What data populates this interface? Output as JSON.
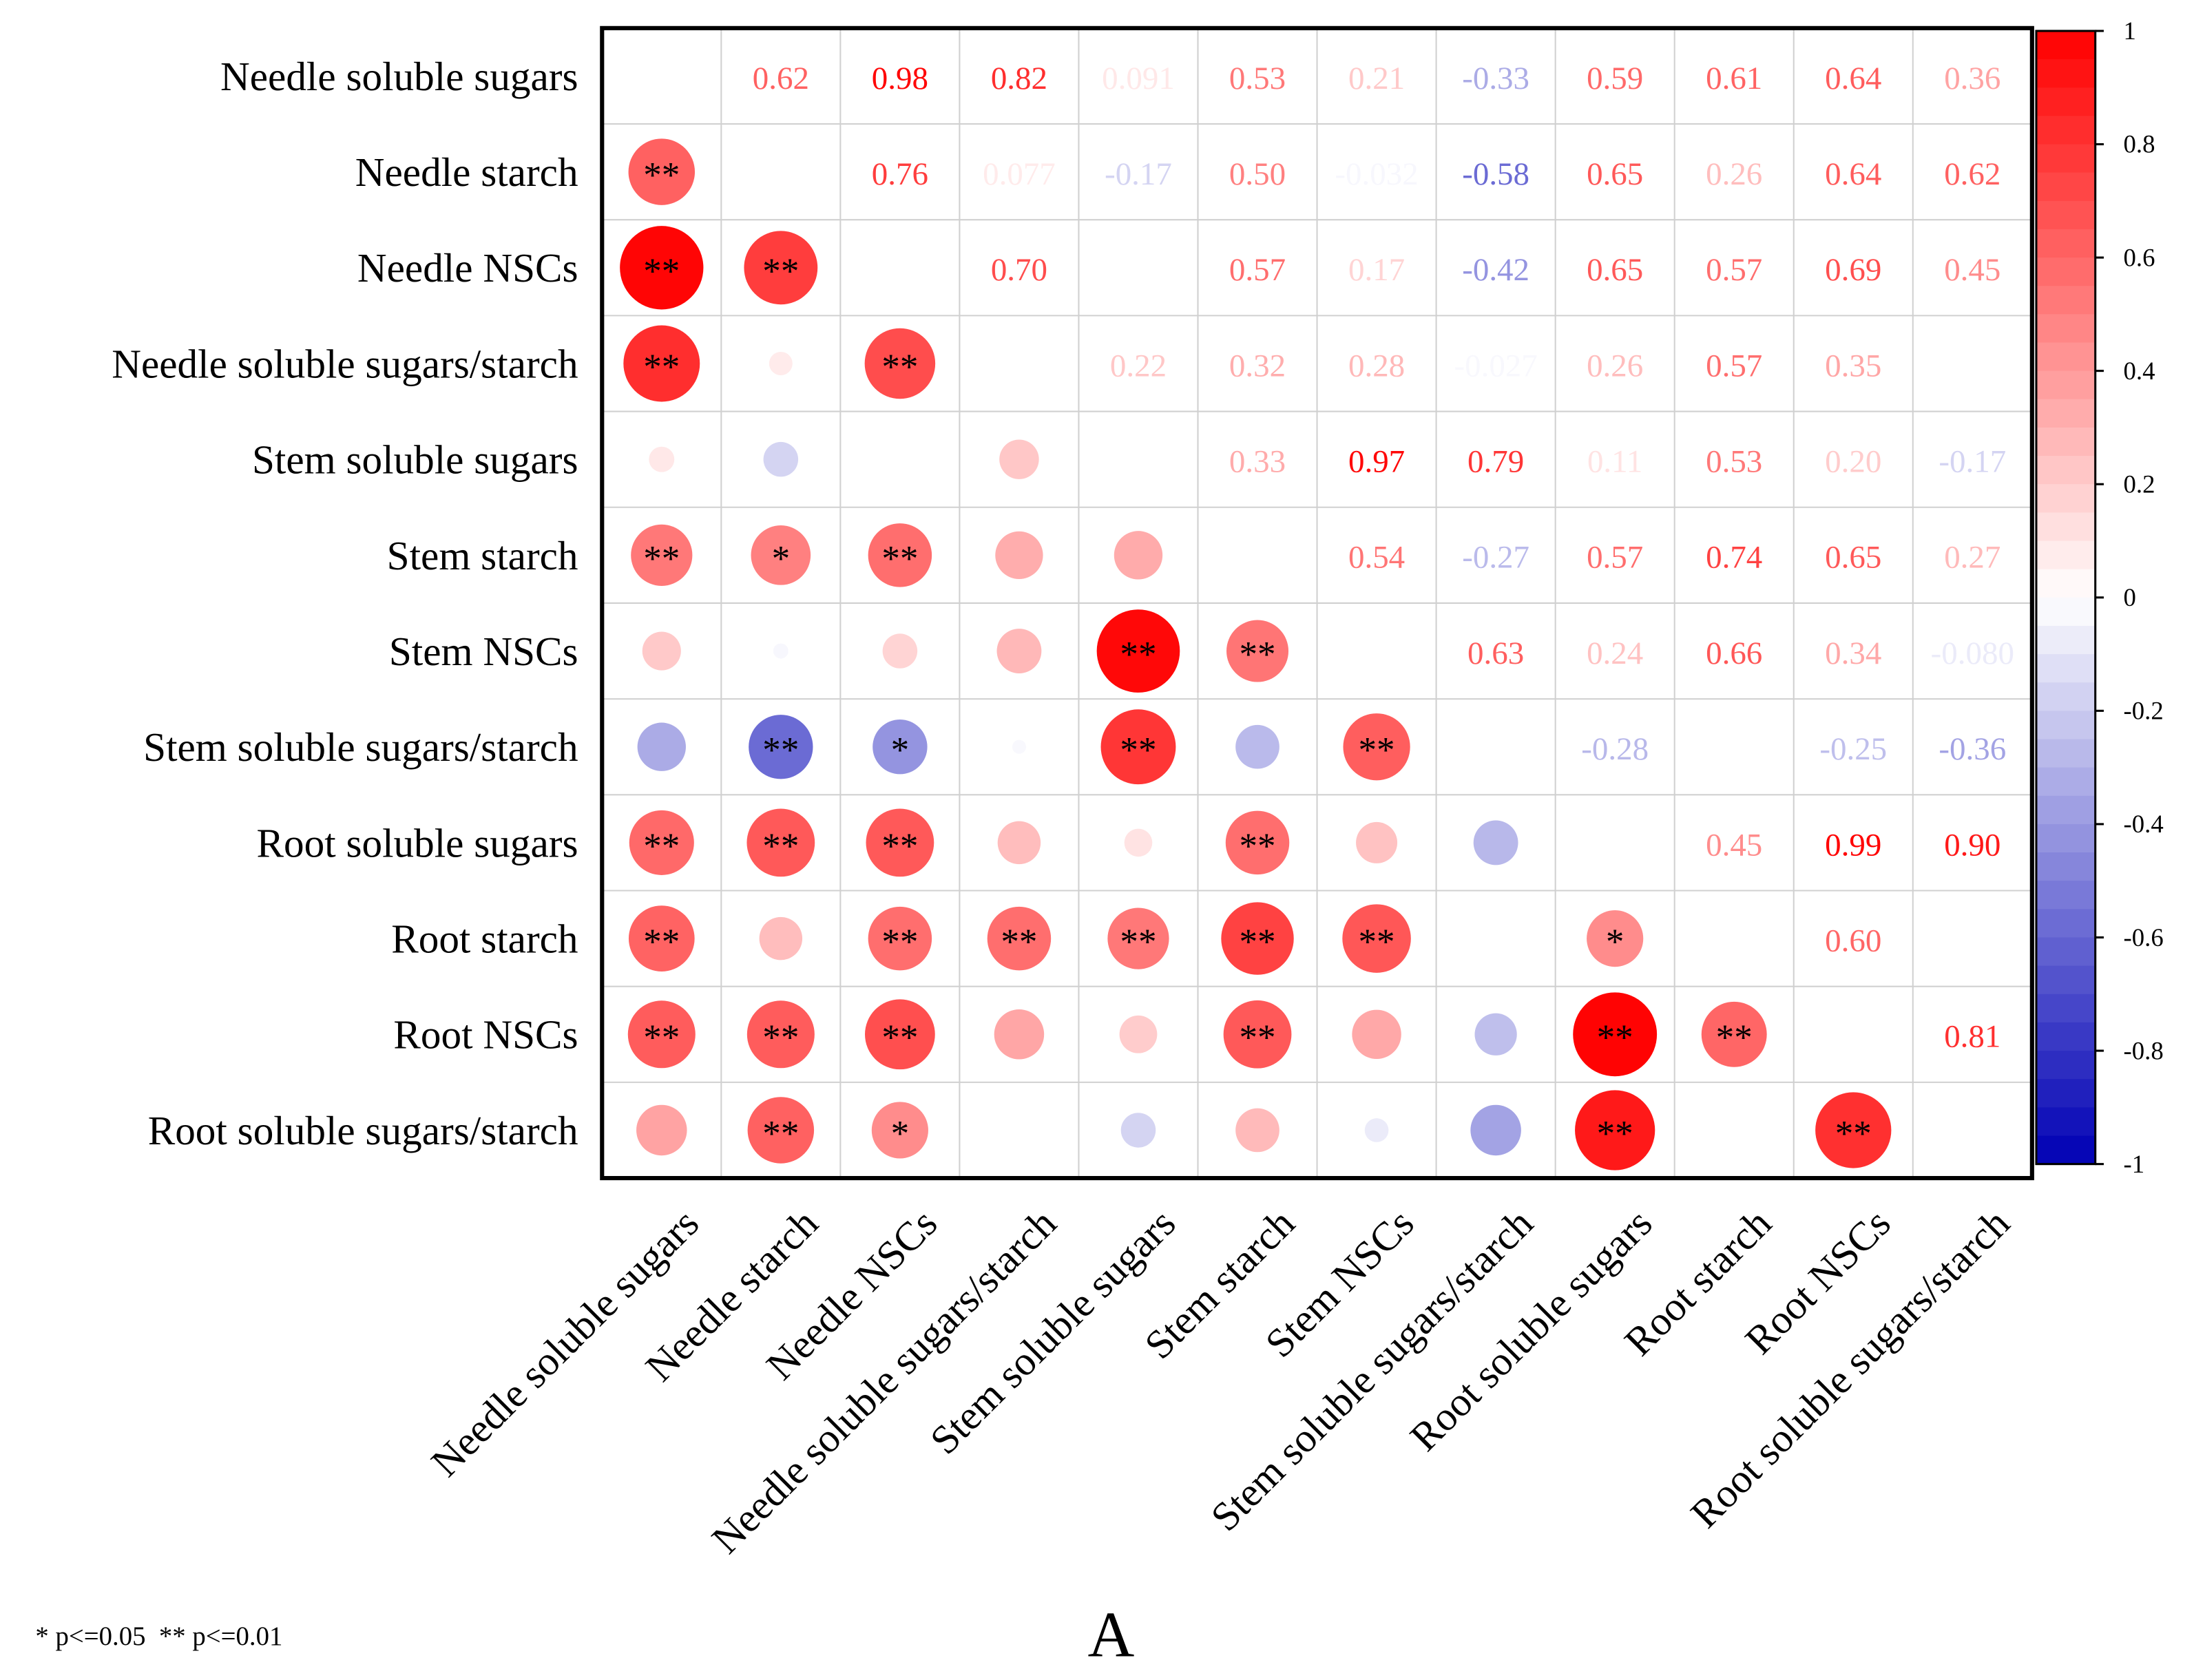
{
  "chart_data": {
    "type": "heatmap",
    "subtype": "correlation-matrix",
    "panel_label": "A",
    "footnote": "* p<=0.05  ** p<=0.01",
    "variables": [
      "Needle soluble sugars",
      "Needle starch",
      "Needle NSCs",
      "Needle soluble sugars/starch",
      "Stem soluble sugars",
      "Stem starch",
      "Stem NSCs",
      "Stem soluble sugars/starch",
      "Root soluble sugars",
      "Root starch",
      "Root NSCs",
      "Root soluble sugars/starch"
    ],
    "upper_triangle_labels": [
      [
        null,
        "0.62",
        "0.98",
        "0.82",
        "0.091",
        "0.53",
        "0.21",
        "-0.33",
        "0.59",
        "0.61",
        "0.64",
        "0.36"
      ],
      [
        null,
        null,
        "0.76",
        "0.077",
        "-0.17",
        "0.50",
        "-0.032",
        "-0.58",
        "0.65",
        "0.26",
        "0.64",
        "0.62"
      ],
      [
        null,
        null,
        null,
        "0.70",
        null,
        "0.57",
        "0.17",
        "-0.42",
        "0.65",
        "0.57",
        "0.69",
        "0.45"
      ],
      [
        null,
        null,
        null,
        null,
        "0.22",
        "0.32",
        "0.28",
        "-0.027",
        "0.26",
        "0.57",
        "0.35",
        null
      ],
      [
        null,
        null,
        null,
        null,
        null,
        "0.33",
        "0.97",
        "0.79",
        "0.11",
        "0.53",
        "0.20",
        "-0.17"
      ],
      [
        null,
        null,
        null,
        null,
        null,
        null,
        "0.54",
        "-0.27",
        "0.57",
        "0.74",
        "0.65",
        "0.27"
      ],
      [
        null,
        null,
        null,
        null,
        null,
        null,
        null,
        "0.63",
        "0.24",
        "0.66",
        "0.34",
        "-0.080"
      ],
      [
        null,
        null,
        null,
        null,
        null,
        null,
        null,
        null,
        "-0.28",
        null,
        "-0.25",
        "-0.36"
      ],
      [
        null,
        null,
        null,
        null,
        null,
        null,
        null,
        null,
        null,
        "0.45",
        "0.99",
        "0.90"
      ],
      [
        null,
        null,
        null,
        null,
        null,
        null,
        null,
        null,
        null,
        null,
        "0.60",
        null
      ],
      [
        null,
        null,
        null,
        null,
        null,
        null,
        null,
        null,
        null,
        null,
        null,
        "0.81"
      ],
      [
        null,
        null,
        null,
        null,
        null,
        null,
        null,
        null,
        null,
        null,
        null,
        null
      ]
    ],
    "lower_triangle_significance": [
      [],
      [
        "**"
      ],
      [
        "**",
        "**"
      ],
      [
        "**",
        "",
        "**"
      ],
      [
        "",
        "",
        "",
        ""
      ],
      [
        "**",
        "*",
        "**",
        "",
        ""
      ],
      [
        "",
        "",
        "",
        "",
        "**",
        "**"
      ],
      [
        "",
        "**",
        "*",
        "",
        "**",
        "",
        "**"
      ],
      [
        "**",
        "**",
        "**",
        "",
        "",
        "**",
        "",
        ""
      ],
      [
        "**",
        "",
        "**",
        "**",
        "**",
        "**",
        "**",
        "",
        "*"
      ],
      [
        "**",
        "**",
        "**",
        "",
        "",
        "**",
        "",
        "",
        "**",
        "**"
      ],
      [
        "",
        "**",
        "*",
        "",
        "",
        "",
        "",
        "",
        "**",
        "",
        "**"
      ]
    ],
    "colorbar": {
      "range": [
        -1,
        1
      ],
      "ticks": [
        "1",
        "0.8",
        "0.6",
        "0.4",
        "0.2",
        "0",
        "-0.2",
        "-0.4",
        "-0.6",
        "-0.8",
        "-1"
      ],
      "positive_color": "#ff0000",
      "negative_color": "#0000b4",
      "zero_color": "#ffffff"
    }
  }
}
